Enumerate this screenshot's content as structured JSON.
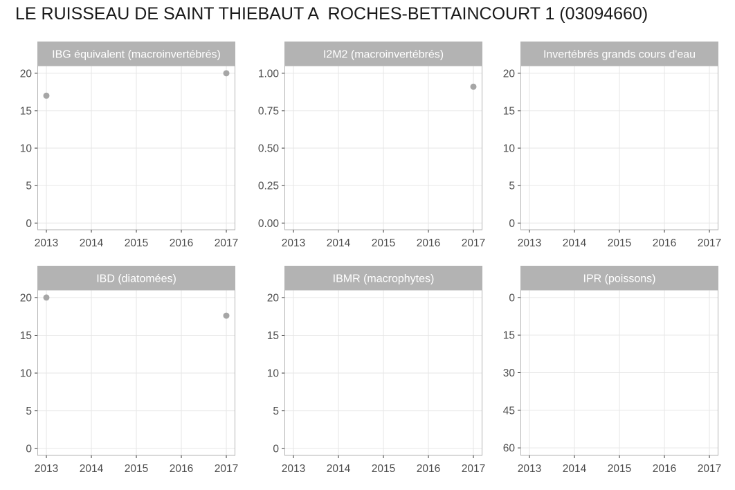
{
  "title": "LE RUISSEAU DE SAINT THIEBAUT A  ROCHES-BETTAINCOURT 1 (03094660)",
  "colors": {
    "strip": "#b3b3b3",
    "panel_border": "#b3b3b3",
    "grid": "#e6e6e6",
    "point": "#a6a6a6",
    "tick_text": "#4d4d4d"
  },
  "chart_data": [
    {
      "type": "scatter",
      "title": "IBG équivalent (macroinvertébrés)",
      "x_ticks": [
        2013,
        2014,
        2015,
        2016,
        2017
      ],
      "y_ticks": [
        "0",
        "5",
        "10",
        "15",
        "20"
      ],
      "y_tick_values": [
        0,
        5,
        10,
        15,
        20
      ],
      "xlim": [
        2012.8,
        2017.2
      ],
      "ylim": [
        -0.9,
        21
      ],
      "y_reversed": false,
      "grid": true,
      "points": [
        {
          "x": 2013,
          "y": 17
        },
        {
          "x": 2017,
          "y": 20
        }
      ]
    },
    {
      "type": "scatter",
      "title": "I2M2 (macroinvertébrés)",
      "x_ticks": [
        2013,
        2014,
        2015,
        2016,
        2017
      ],
      "y_ticks": [
        "0.00",
        "0.25",
        "0.50",
        "0.75",
        "1.00"
      ],
      "y_tick_values": [
        0,
        0.25,
        0.5,
        0.75,
        1.0
      ],
      "xlim": [
        2012.8,
        2017.2
      ],
      "ylim": [
        -0.045,
        1.05
      ],
      "y_reversed": false,
      "grid": true,
      "points": [
        {
          "x": 2017,
          "y": 0.91
        }
      ]
    },
    {
      "type": "scatter",
      "title": "Invertébrés grands cours d'eau",
      "x_ticks": [
        2013,
        2014,
        2015,
        2016,
        2017
      ],
      "y_ticks": [
        "0",
        "5",
        "10",
        "15",
        "20"
      ],
      "y_tick_values": [
        0,
        5,
        10,
        15,
        20
      ],
      "xlim": [
        2012.8,
        2017.2
      ],
      "ylim": [
        -0.9,
        21
      ],
      "y_reversed": false,
      "grid": true,
      "points": []
    },
    {
      "type": "scatter",
      "title": "IBD (diatomées)",
      "x_ticks": [
        2013,
        2014,
        2015,
        2016,
        2017
      ],
      "y_ticks": [
        "0",
        "5",
        "10",
        "15",
        "20"
      ],
      "y_tick_values": [
        0,
        5,
        10,
        15,
        20
      ],
      "xlim": [
        2012.8,
        2017.2
      ],
      "ylim": [
        -0.9,
        21
      ],
      "y_reversed": false,
      "grid": true,
      "points": [
        {
          "x": 2013,
          "y": 20
        },
        {
          "x": 2017,
          "y": 17.6
        }
      ]
    },
    {
      "type": "scatter",
      "title": "IBMR (macrophytes)",
      "x_ticks": [
        2013,
        2014,
        2015,
        2016,
        2017
      ],
      "y_ticks": [
        "0",
        "5",
        "10",
        "15",
        "20"
      ],
      "y_tick_values": [
        0,
        5,
        10,
        15,
        20
      ],
      "xlim": [
        2012.8,
        2017.2
      ],
      "ylim": [
        -0.9,
        21
      ],
      "y_reversed": false,
      "grid": true,
      "points": []
    },
    {
      "type": "scatter",
      "title": "IPR (poissons)",
      "x_ticks": [
        2013,
        2014,
        2015,
        2016,
        2017
      ],
      "y_ticks": [
        "0",
        "15",
        "30",
        "45",
        "60"
      ],
      "y_tick_values": [
        0,
        15,
        30,
        45,
        60
      ],
      "xlim": [
        2012.8,
        2017.2
      ],
      "ylim": [
        -3,
        63
      ],
      "y_reversed": true,
      "grid": true,
      "points": []
    }
  ]
}
